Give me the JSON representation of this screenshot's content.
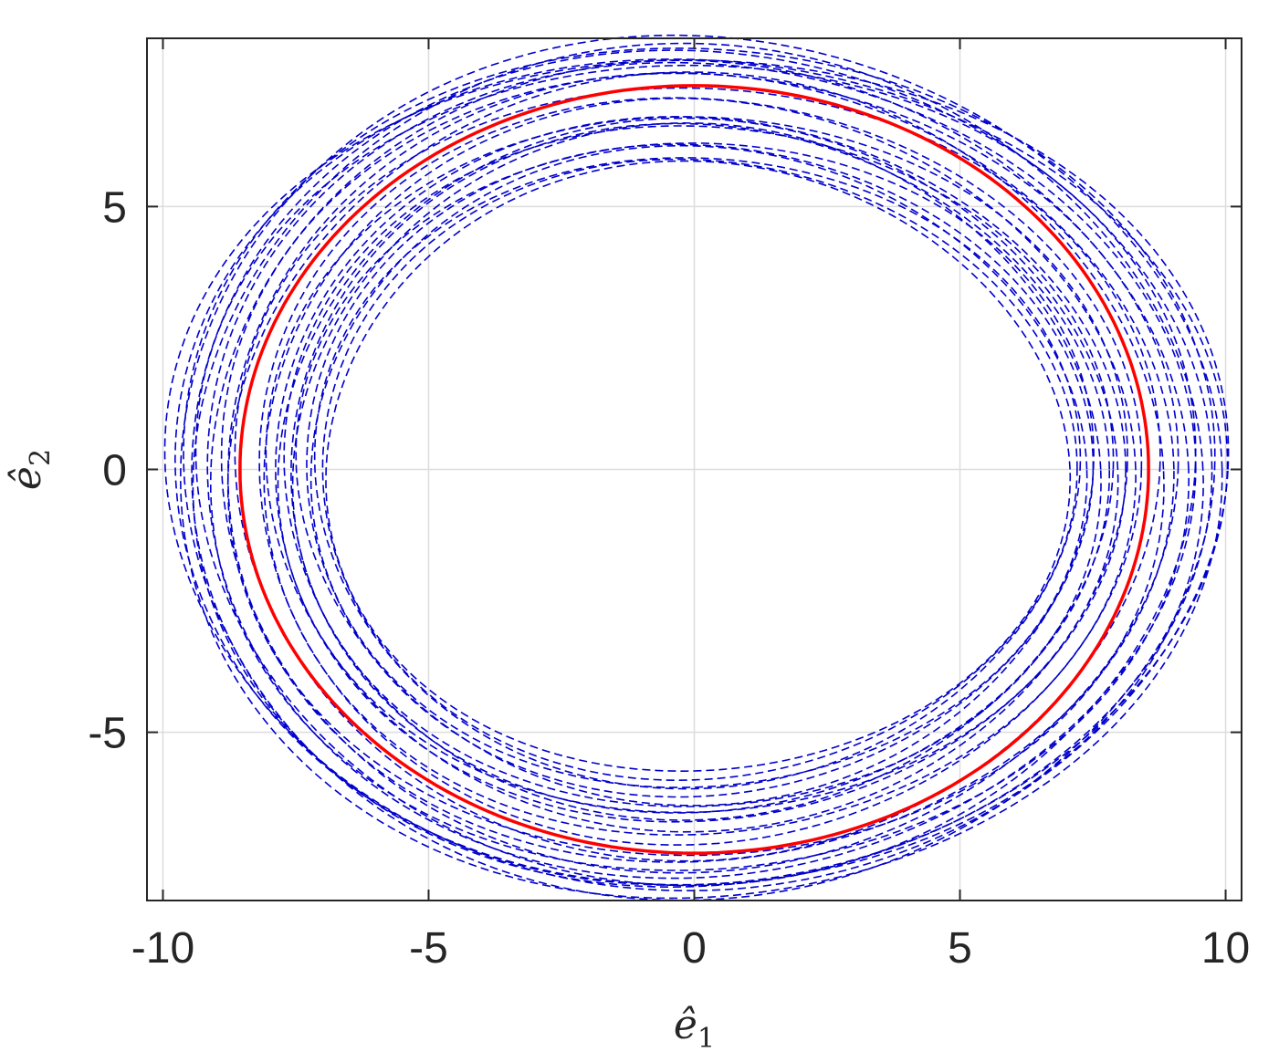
{
  "chart_data": {
    "type": "line",
    "title": "",
    "xlabel": {
      "base": "ê",
      "sub": "1"
    },
    "ylabel": {
      "base": "ê",
      "sub": "2"
    },
    "xlim": [
      -10.3,
      10.3
    ],
    "ylim": [
      -8.2,
      8.2
    ],
    "xticks": [
      -10,
      -5,
      0,
      5,
      10
    ],
    "yticks": [
      -5,
      0,
      5
    ],
    "xtick_labels": [
      "-10",
      "-5",
      "0",
      "5",
      "10"
    ],
    "ytick_labels": [
      "-5",
      "0",
      "5"
    ],
    "grid": true,
    "box": true,
    "series": [
      {
        "style": "dashed",
        "color": "#0000CC",
        "curves": [
          {
            "a": 10.0,
            "b": 7.9,
            "phase": 0.3
          },
          {
            "a": 9.9,
            "b": 7.85,
            "phase": 1.1
          },
          {
            "a": 9.8,
            "b": 8.2,
            "phase": 2.0
          },
          {
            "a": 9.7,
            "b": 8.1,
            "phase": 0.7
          },
          {
            "a": 9.6,
            "b": 7.95,
            "phase": 1.7
          },
          {
            "a": 9.5,
            "b": 8.0,
            "phase": 2.6
          },
          {
            "a": 9.4,
            "b": 7.8,
            "phase": 0.2
          },
          {
            "a": 9.3,
            "b": 7.75,
            "phase": 1.4
          },
          {
            "a": 9.2,
            "b": 7.7,
            "phase": 2.3
          },
          {
            "a": 9.0,
            "b": 7.6,
            "phase": 0.9
          },
          {
            "a": 8.9,
            "b": 7.5,
            "phase": 1.9
          },
          {
            "a": 8.8,
            "b": 7.45,
            "phase": 2.9
          },
          {
            "a": 8.7,
            "b": 7.35,
            "phase": 0.5
          },
          {
            "a": 8.3,
            "b": 7.1,
            "phase": 1.2
          },
          {
            "a": 8.2,
            "b": 7.0,
            "phase": 2.1
          },
          {
            "a": 8.1,
            "b": 6.8,
            "phase": 0.4
          },
          {
            "a": 8.0,
            "b": 6.7,
            "phase": 1.6
          },
          {
            "a": 7.9,
            "b": 6.6,
            "phase": 2.5
          },
          {
            "a": 7.8,
            "b": 6.6,
            "phase": 0.8
          },
          {
            "a": 7.7,
            "b": 6.55,
            "phase": 1.8
          },
          {
            "a": 7.6,
            "b": 6.5,
            "phase": 2.7
          },
          {
            "a": 7.5,
            "b": 6.3,
            "phase": 0.1
          },
          {
            "a": 7.4,
            "b": 6.2,
            "phase": 1.3
          },
          {
            "a": 7.3,
            "b": 6.1,
            "phase": 2.2
          },
          {
            "a": 7.2,
            "b": 6.0,
            "phase": 0.6
          },
          {
            "a": 7.1,
            "b": 5.9,
            "phase": 1.5
          },
          {
            "a": 7.0,
            "b": 5.8,
            "phase": 2.4
          }
        ]
      },
      {
        "style": "solid",
        "color": "#FF0000",
        "curves": [
          {
            "a": 8.55,
            "b": 7.3,
            "phase": 0.0
          }
        ]
      }
    ]
  }
}
